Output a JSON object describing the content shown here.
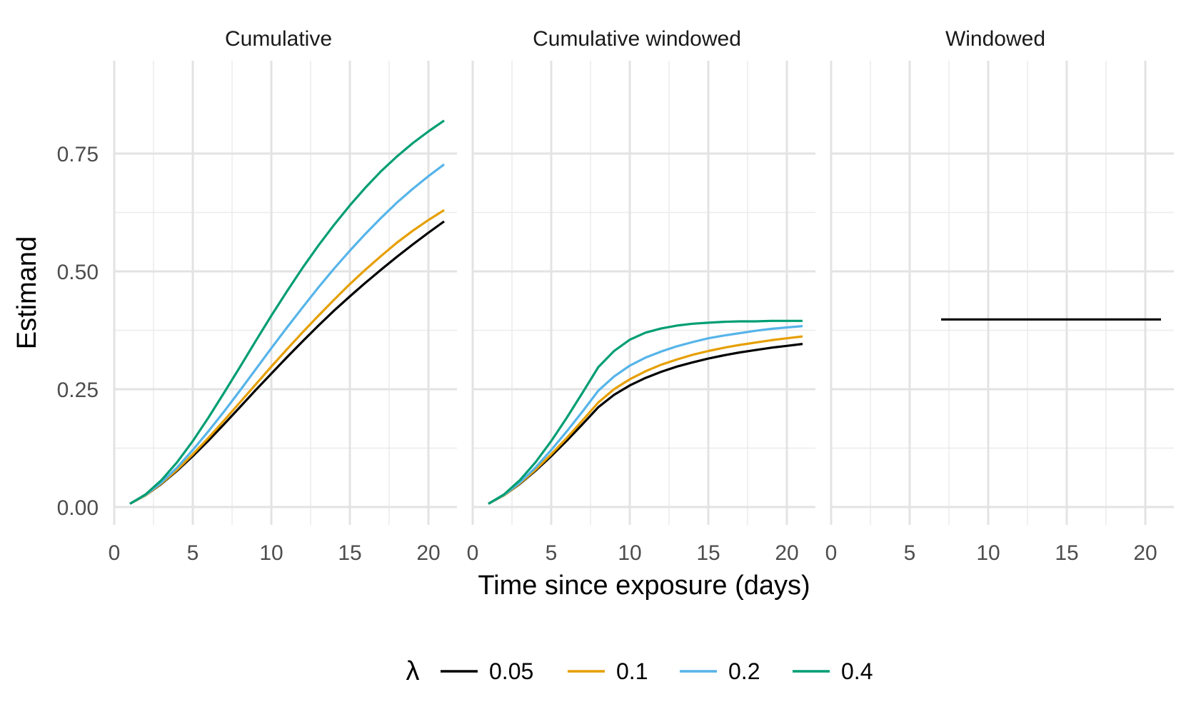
{
  "chart_data": {
    "type": "line",
    "xlabel": "Time since exposure (days)",
    "ylabel": "Estimand",
    "xlim": [
      0,
      21
    ],
    "ylim": [
      0,
      0.875
    ],
    "x_ticks": [
      0,
      5,
      10,
      15,
      20
    ],
    "y_ticks": [
      0,
      0.25,
      0.5,
      0.75
    ],
    "y_tick_labels": [
      "0.00",
      "0.25",
      "0.50",
      "0.75"
    ],
    "x_minor_gridlines": [
      2.5,
      7.5,
      12.5,
      17.5
    ],
    "y_minor_gridlines": [
      0.125,
      0.375,
      0.625
    ],
    "grid": true,
    "legend": {
      "title": "λ",
      "position": "bottom",
      "entries": [
        {
          "label": "0.05",
          "color": "#000000"
        },
        {
          "label": "0.1",
          "color": "#E69F00"
        },
        {
          "label": "0.2",
          "color": "#56B4E9"
        },
        {
          "label": "0.4",
          "color": "#009E73"
        }
      ]
    },
    "panels": [
      {
        "title": "Cumulative",
        "x": [
          1,
          2,
          3,
          4,
          5,
          6,
          7,
          8,
          9,
          10,
          11,
          12,
          13,
          14,
          15,
          16,
          17,
          18,
          19,
          20,
          21
        ],
        "series": [
          {
            "name": "0.05",
            "color": "#000000",
            "values": [
              0.007,
              0.025,
              0.049,
              0.077,
              0.108,
              0.141,
              0.176,
              0.212,
              0.248,
              0.283,
              0.318,
              0.352,
              0.385,
              0.417,
              0.447,
              0.476,
              0.504,
              0.531,
              0.557,
              0.582,
              0.606
            ]
          },
          {
            "name": "0.1",
            "color": "#E69F00",
            "values": [
              0.007,
              0.025,
              0.05,
              0.079,
              0.112,
              0.147,
              0.184,
              0.222,
              0.26,
              0.298,
              0.335,
              0.371,
              0.406,
              0.44,
              0.473,
              0.504,
              0.533,
              0.561,
              0.586,
              0.609,
              0.63
            ]
          },
          {
            "name": "0.2",
            "color": "#56B4E9",
            "values": [
              0.007,
              0.026,
              0.052,
              0.084,
              0.121,
              0.161,
              0.203,
              0.247,
              0.292,
              0.337,
              0.381,
              0.424,
              0.466,
              0.506,
              0.544,
              0.58,
              0.614,
              0.646,
              0.675,
              0.702,
              0.727
            ]
          },
          {
            "name": "0.4",
            "color": "#009E73",
            "values": [
              0.007,
              0.027,
              0.057,
              0.095,
              0.14,
              0.19,
              0.243,
              0.297,
              0.352,
              0.406,
              0.458,
              0.508,
              0.555,
              0.599,
              0.64,
              0.678,
              0.713,
              0.744,
              0.772,
              0.797,
              0.82
            ]
          }
        ]
      },
      {
        "title": "Cumulative windowed",
        "x": [
          1,
          2,
          3,
          4,
          5,
          6,
          7,
          8,
          9,
          10,
          11,
          12,
          13,
          14,
          15,
          16,
          17,
          18,
          19,
          20,
          21
        ],
        "series": [
          {
            "name": "0.05",
            "color": "#000000",
            "values": [
              0.007,
              0.025,
              0.049,
              0.077,
              0.108,
              0.141,
              0.176,
              0.212,
              0.238,
              0.258,
              0.274,
              0.287,
              0.298,
              0.307,
              0.315,
              0.322,
              0.328,
              0.333,
              0.338,
              0.342,
              0.346
            ]
          },
          {
            "name": "0.1",
            "color": "#E69F00",
            "values": [
              0.007,
              0.025,
              0.05,
              0.079,
              0.112,
              0.147,
              0.184,
              0.222,
              0.25,
              0.271,
              0.288,
              0.302,
              0.313,
              0.323,
              0.331,
              0.338,
              0.344,
              0.349,
              0.354,
              0.358,
              0.362
            ]
          },
          {
            "name": "0.2",
            "color": "#56B4E9",
            "values": [
              0.007,
              0.026,
              0.052,
              0.084,
              0.121,
              0.161,
              0.203,
              0.247,
              0.277,
              0.3,
              0.317,
              0.33,
              0.341,
              0.35,
              0.358,
              0.364,
              0.369,
              0.374,
              0.378,
              0.381,
              0.384
            ]
          },
          {
            "name": "0.4",
            "color": "#009E73",
            "values": [
              0.007,
              0.027,
              0.057,
              0.095,
              0.14,
              0.19,
              0.243,
              0.297,
              0.331,
              0.355,
              0.37,
              0.379,
              0.385,
              0.389,
              0.391,
              0.393,
              0.394,
              0.394,
              0.395,
              0.395,
              0.395
            ]
          }
        ]
      },
      {
        "title": "Windowed",
        "x": [
          7,
          21
        ],
        "series": [
          {
            "name": "0.05",
            "color": "#000000",
            "values": [
              0.398,
              0.398
            ]
          }
        ]
      }
    ]
  }
}
